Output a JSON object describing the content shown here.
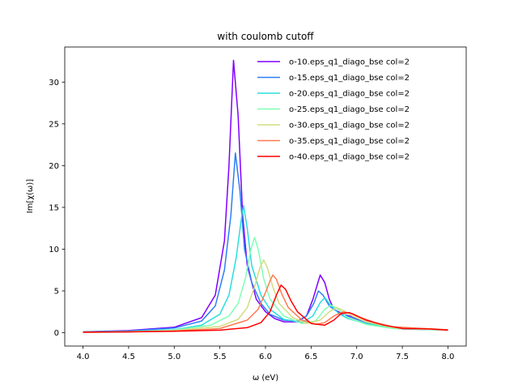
{
  "chart_data": {
    "type": "line",
    "title": "with coulomb cutoff",
    "xlabel": "ω (eV)",
    "ylabel": "Im[χ(ω)]",
    "xlim": [
      3.8,
      8.2
    ],
    "ylim": [
      -1.6,
      34.2
    ],
    "x_ticks": [
      4.0,
      4.5,
      5.0,
      5.5,
      6.0,
      6.5,
      7.0,
      7.5,
      8.0
    ],
    "y_ticks": [
      0,
      5,
      10,
      15,
      20,
      25,
      30
    ],
    "grid": false,
    "legend_position": "top-right",
    "x_range": [
      4.0,
      8.0
    ],
    "series": [
      {
        "name": "o-10.eps_q1_diago_bse col=2",
        "color": "#8000ff",
        "points": [
          [
            4.0,
            0.1
          ],
          [
            4.5,
            0.25
          ],
          [
            5.0,
            0.65
          ],
          [
            5.3,
            1.8
          ],
          [
            5.45,
            4.5
          ],
          [
            5.55,
            11
          ],
          [
            5.6,
            20
          ],
          [
            5.65,
            32.6
          ],
          [
            5.7,
            26
          ],
          [
            5.75,
            14
          ],
          [
            5.8,
            8
          ],
          [
            5.9,
            4
          ],
          [
            6.0,
            2.5
          ],
          [
            6.1,
            1.7
          ],
          [
            6.2,
            1.3
          ],
          [
            6.35,
            1.3
          ],
          [
            6.45,
            2
          ],
          [
            6.52,
            4
          ],
          [
            6.6,
            6.9
          ],
          [
            6.65,
            6.0
          ],
          [
            6.7,
            4
          ],
          [
            6.75,
            2.8
          ],
          [
            6.85,
            2.2
          ],
          [
            6.95,
            1.9
          ],
          [
            7.1,
            1.3
          ],
          [
            7.3,
            0.7
          ],
          [
            7.5,
            0.45
          ],
          [
            7.8,
            0.45
          ],
          [
            8.0,
            0.3
          ]
        ]
      },
      {
        "name": "o-15.eps_q1_diago_bse col=2",
        "color": "#2c7ef7",
        "points": [
          [
            4.0,
            0.1
          ],
          [
            4.5,
            0.2
          ],
          [
            5.0,
            0.55
          ],
          [
            5.3,
            1.4
          ],
          [
            5.45,
            3.2
          ],
          [
            5.55,
            7.5
          ],
          [
            5.62,
            14
          ],
          [
            5.67,
            21.5
          ],
          [
            5.72,
            17
          ],
          [
            5.77,
            10
          ],
          [
            5.85,
            6
          ],
          [
            5.95,
            3.5
          ],
          [
            6.05,
            2.2
          ],
          [
            6.2,
            1.5
          ],
          [
            6.35,
            1.4
          ],
          [
            6.45,
            2
          ],
          [
            6.53,
            3.5
          ],
          [
            6.58,
            5
          ],
          [
            6.63,
            4.5
          ],
          [
            6.7,
            3.2
          ],
          [
            6.8,
            2.4
          ],
          [
            6.9,
            2.0
          ],
          [
            7.0,
            1.6
          ],
          [
            7.2,
            0.9
          ],
          [
            7.5,
            0.45
          ],
          [
            8.0,
            0.3
          ]
        ]
      },
      {
        "name": "o-20.eps_q1_diago_bse col=2",
        "color": "#2adddd",
        "points": [
          [
            4.0,
            0.05
          ],
          [
            4.5,
            0.15
          ],
          [
            5.0,
            0.35
          ],
          [
            5.3,
            0.9
          ],
          [
            5.5,
            2.2
          ],
          [
            5.6,
            4.5
          ],
          [
            5.68,
            9
          ],
          [
            5.74,
            14
          ],
          [
            5.76,
            15.2
          ],
          [
            5.8,
            12.5
          ],
          [
            5.85,
            8
          ],
          [
            5.95,
            4.5
          ],
          [
            6.05,
            2.8
          ],
          [
            6.2,
            1.6
          ],
          [
            6.4,
            1.2
          ],
          [
            6.52,
            2
          ],
          [
            6.6,
            3.6
          ],
          [
            6.65,
            4.2
          ],
          [
            6.7,
            3.5
          ],
          [
            6.8,
            2.3
          ],
          [
            6.9,
            1.7
          ],
          [
            7.1,
            1.1
          ],
          [
            7.4,
            0.6
          ],
          [
            8.0,
            0.3
          ]
        ]
      },
      {
        "name": "o-25.eps_q1_diago_bse col=2",
        "color": "#80ffb4",
        "points": [
          [
            4.0,
            0.05
          ],
          [
            4.5,
            0.12
          ],
          [
            5.0,
            0.3
          ],
          [
            5.4,
            0.9
          ],
          [
            5.6,
            2
          ],
          [
            5.7,
            3.5
          ],
          [
            5.78,
            6.5
          ],
          [
            5.84,
            10
          ],
          [
            5.88,
            11.4
          ],
          [
            5.92,
            10
          ],
          [
            5.98,
            6.5
          ],
          [
            6.05,
            4
          ],
          [
            6.2,
            2
          ],
          [
            6.4,
            1.1
          ],
          [
            6.55,
            1.4
          ],
          [
            6.65,
            2.8
          ],
          [
            6.72,
            3.3
          ],
          [
            6.8,
            2.8
          ],
          [
            6.9,
            1.8
          ],
          [
            7.1,
            1
          ],
          [
            7.4,
            0.5
          ],
          [
            8.0,
            0.3
          ]
        ]
      },
      {
        "name": "o-30.eps_q1_diago_bse col=2",
        "color": "#d4dd80",
        "points": [
          [
            4.0,
            0.05
          ],
          [
            4.5,
            0.1
          ],
          [
            5.0,
            0.25
          ],
          [
            5.5,
            0.75
          ],
          [
            5.7,
            1.6
          ],
          [
            5.8,
            3
          ],
          [
            5.88,
            5.5
          ],
          [
            5.94,
            7.8
          ],
          [
            5.98,
            8.7
          ],
          [
            6.02,
            7.8
          ],
          [
            6.08,
            5.5
          ],
          [
            6.15,
            3.5
          ],
          [
            6.3,
            1.8
          ],
          [
            6.45,
            1.1
          ],
          [
            6.6,
            1.5
          ],
          [
            6.7,
            2.5
          ],
          [
            6.78,
            3
          ],
          [
            6.85,
            2.7
          ],
          [
            6.95,
            2
          ],
          [
            7.1,
            1.3
          ],
          [
            7.4,
            0.6
          ],
          [
            8.0,
            0.3
          ]
        ]
      },
      {
        "name": "o-35.eps_q1_diago_bse col=2",
        "color": "#ff7a50",
        "points": [
          [
            4.0,
            0.05
          ],
          [
            4.5,
            0.1
          ],
          [
            5.0,
            0.2
          ],
          [
            5.5,
            0.5
          ],
          [
            5.8,
            1.5
          ],
          [
            5.92,
            2.8
          ],
          [
            6.0,
            4.8
          ],
          [
            6.05,
            6.2
          ],
          [
            6.08,
            6.9
          ],
          [
            6.12,
            6.4
          ],
          [
            6.18,
            4.6
          ],
          [
            6.25,
            3
          ],
          [
            6.4,
            1.5
          ],
          [
            6.55,
            1
          ],
          [
            6.65,
            1.2
          ],
          [
            6.75,
            2
          ],
          [
            6.85,
            2.5
          ],
          [
            6.95,
            2.3
          ],
          [
            7.05,
            1.8
          ],
          [
            7.2,
            1.2
          ],
          [
            7.4,
            0.7
          ],
          [
            8.0,
            0.35
          ]
        ]
      },
      {
        "name": "o-40.eps_q1_diago_bse col=2",
        "color": "#ff0000",
        "points": [
          [
            4.0,
            0.05
          ],
          [
            4.5,
            0.1
          ],
          [
            5.0,
            0.18
          ],
          [
            5.5,
            0.3
          ],
          [
            5.8,
            0.6
          ],
          [
            5.95,
            1.2
          ],
          [
            6.05,
            2.5
          ],
          [
            6.12,
            4.5
          ],
          [
            6.17,
            5.7
          ],
          [
            6.22,
            5.2
          ],
          [
            6.28,
            3.8
          ],
          [
            6.35,
            2.5
          ],
          [
            6.5,
            1.1
          ],
          [
            6.65,
            0.9
          ],
          [
            6.75,
            1.5
          ],
          [
            6.83,
            2.3
          ],
          [
            6.92,
            2.4
          ],
          [
            7.0,
            2.0
          ],
          [
            7.1,
            1.5
          ],
          [
            7.3,
            0.9
          ],
          [
            7.5,
            0.5
          ],
          [
            7.8,
            0.45
          ],
          [
            8.0,
            0.3
          ]
        ]
      }
    ]
  }
}
